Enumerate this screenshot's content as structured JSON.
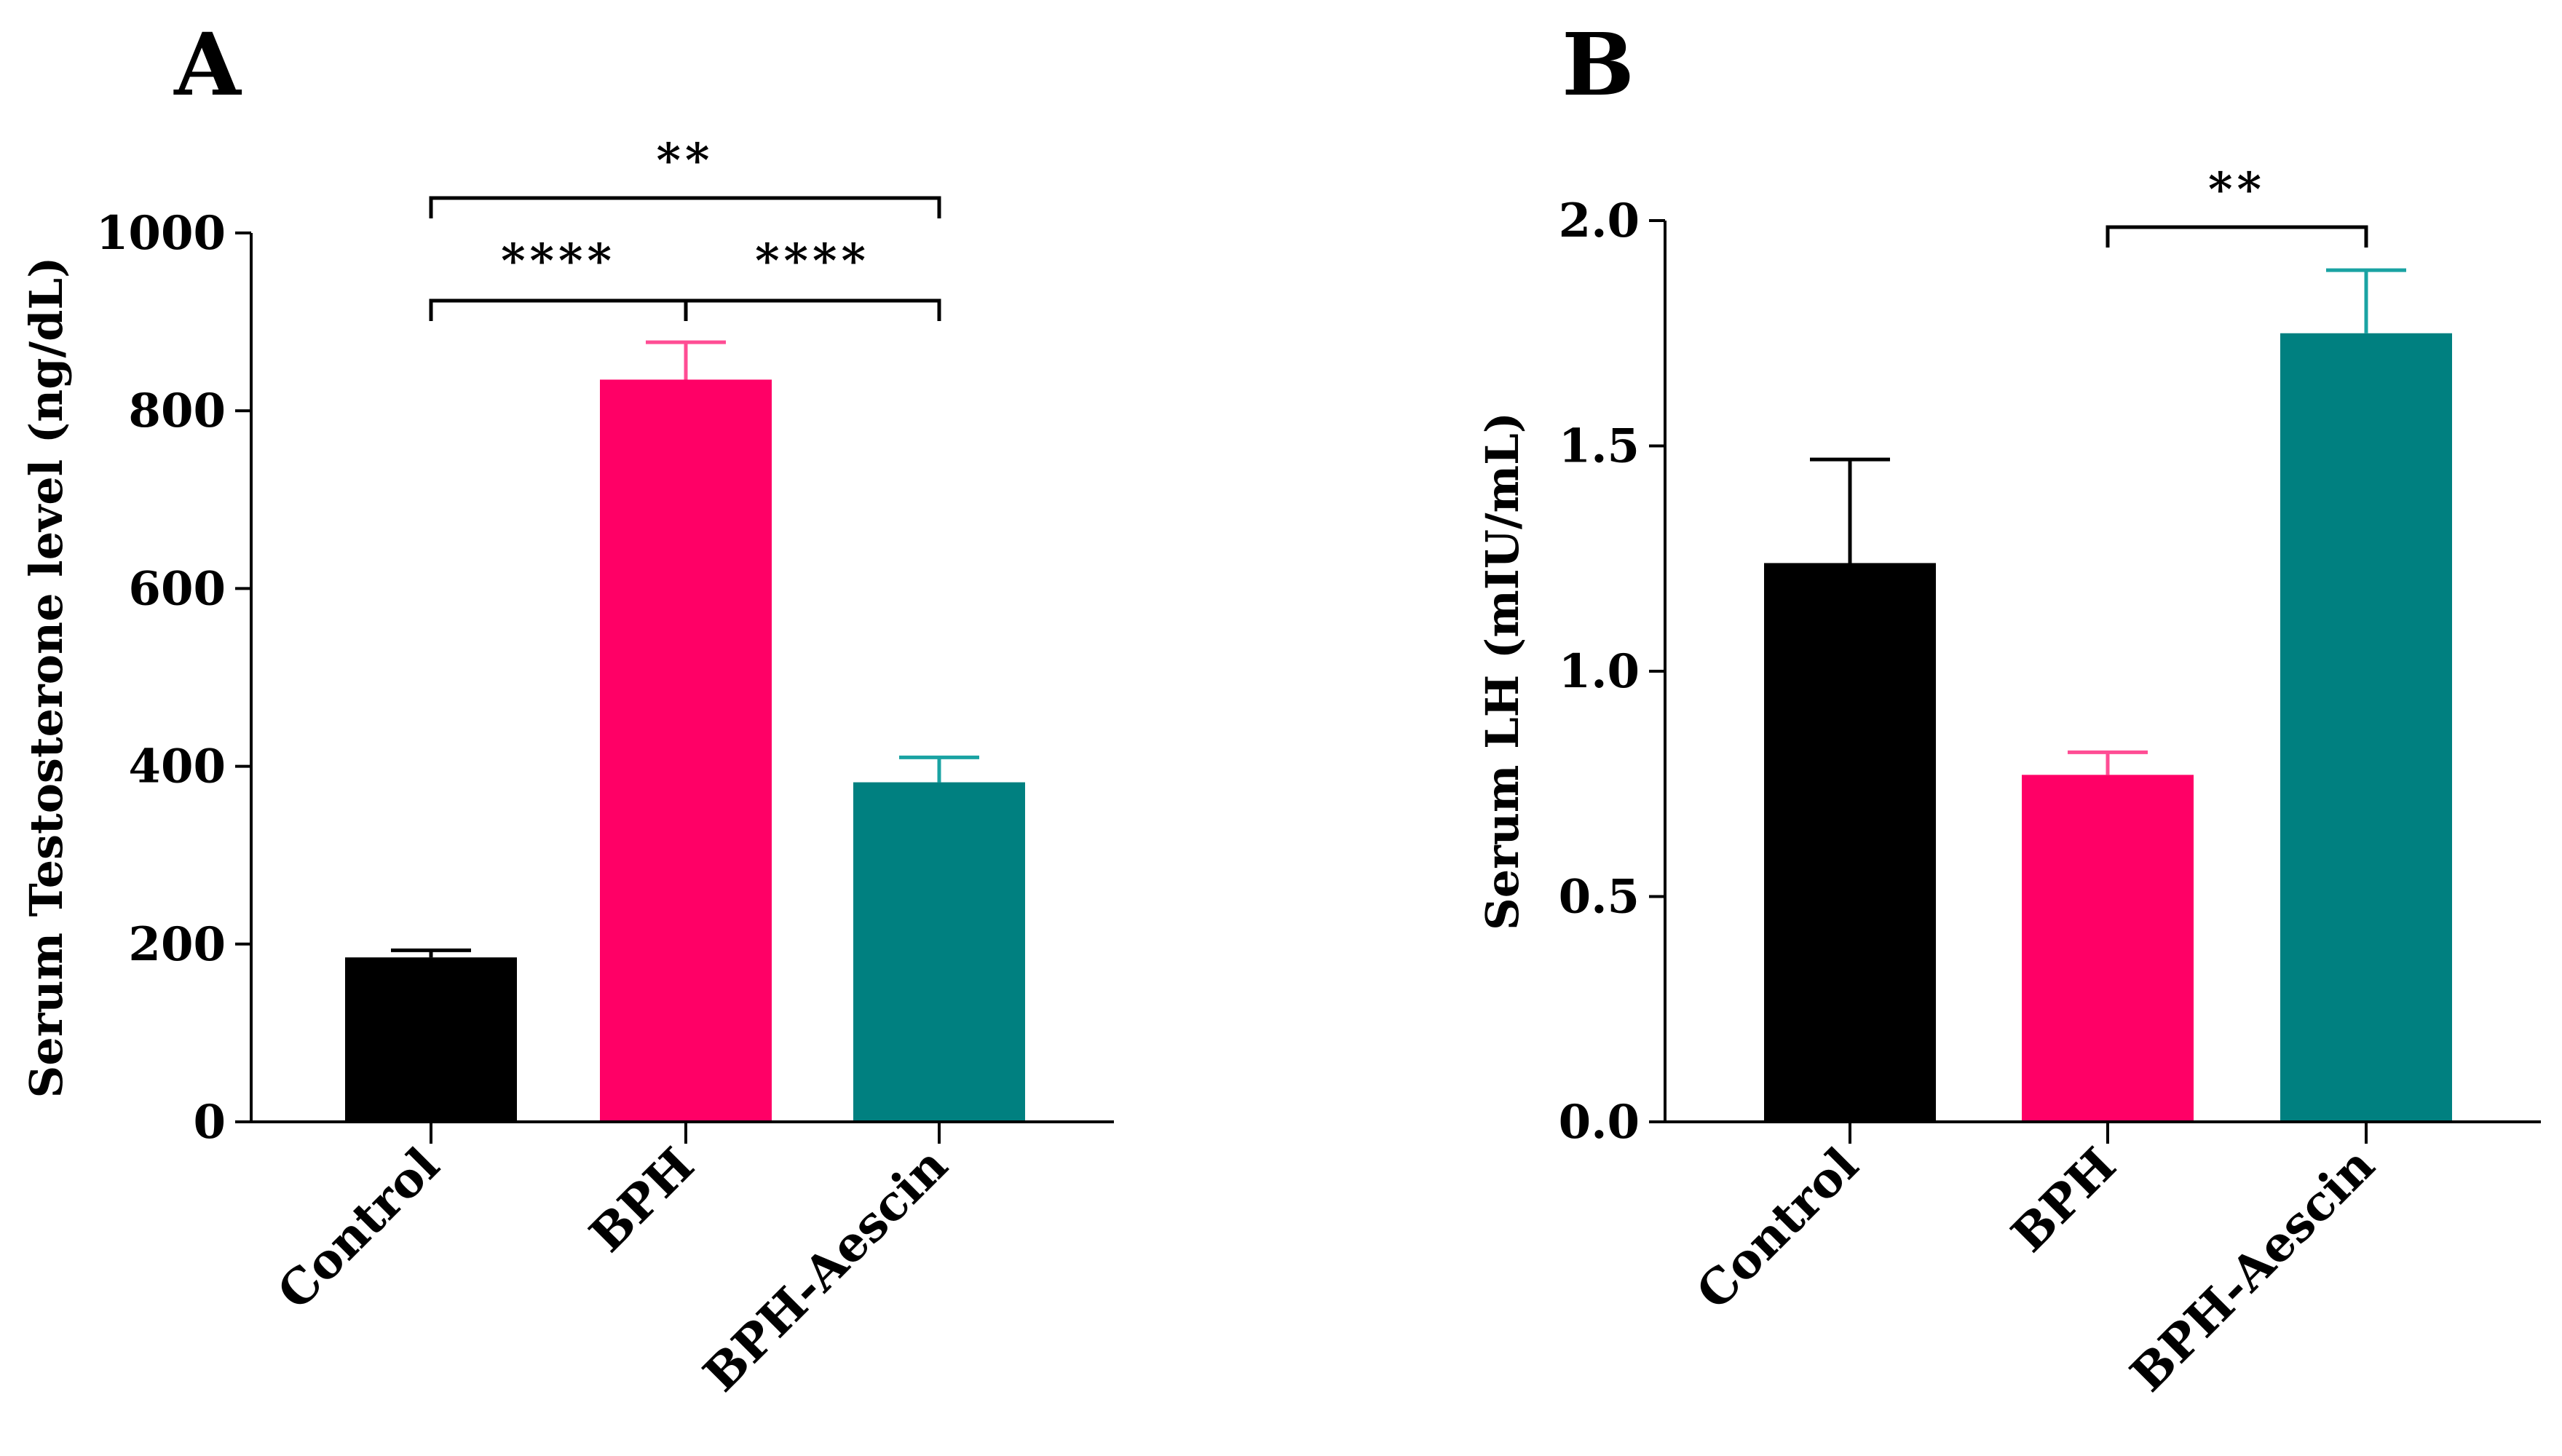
{
  "chart_data": [
    {
      "panel": "A",
      "type": "bar",
      "categories": [
        "Control",
        "BPH",
        "BPH-Aescin"
      ],
      "values": [
        185,
        835,
        382
      ],
      "errors": [
        8,
        42,
        28
      ],
      "colors": [
        "#000000",
        "#ff0066",
        "#008080"
      ],
      "error_colors": [
        "#000000",
        "#ff4d94",
        "#1aa3a3"
      ],
      "xlabel": "",
      "ylabel": "Serum Testosterone level (ng/dL)",
      "ylim": [
        0,
        1000
      ],
      "yticks": [
        0,
        200,
        400,
        600,
        800,
        1000
      ],
      "ytick_labels": [
        "0",
        "200",
        "400",
        "600",
        "800",
        "1000"
      ],
      "grid": false,
      "significance": [
        {
          "from": 0,
          "to": 1,
          "label": "****"
        },
        {
          "from": 1,
          "to": 2,
          "label": "****"
        },
        {
          "from": 0,
          "to": 2,
          "label": "**"
        }
      ]
    },
    {
      "panel": "B",
      "type": "bar",
      "categories": [
        "Control",
        "BPH",
        "BPH-Aescin"
      ],
      "values": [
        1.24,
        0.77,
        1.75
      ],
      "errors": [
        0.23,
        0.05,
        0.14
      ],
      "colors": [
        "#000000",
        "#ff0066",
        "#008080"
      ],
      "error_colors": [
        "#000000",
        "#ff4d94",
        "#1aa3a3"
      ],
      "xlabel": "",
      "ylabel": "Serum LH (mIU/mL)",
      "ylim": [
        0,
        2
      ],
      "yticks": [
        0,
        0.5,
        1,
        1.5,
        2
      ],
      "ytick_labels": [
        "0.0",
        "0.5",
        "1.0",
        "1.5",
        "2.0"
      ],
      "grid": false,
      "significance": [
        {
          "from": 1,
          "to": 2,
          "label": "**"
        }
      ]
    }
  ]
}
